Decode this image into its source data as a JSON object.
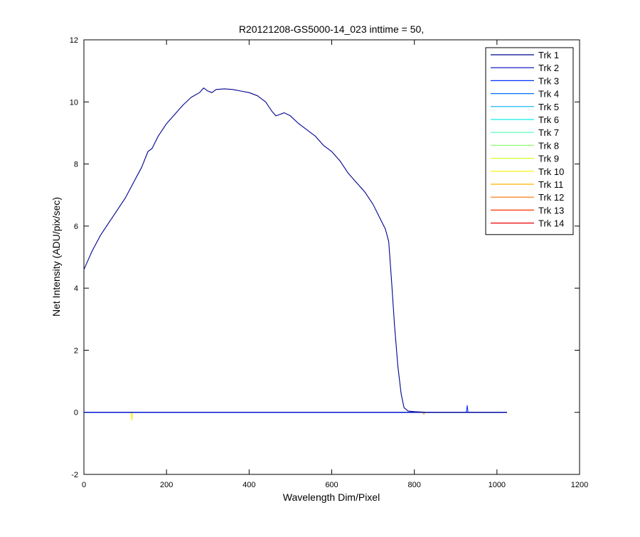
{
  "chart_data": {
    "type": "line",
    "title": "R20121208-GS5000-14_023 inttime = 50,",
    "xlabel": "Wavelength Dim/Pixel",
    "ylabel": "Net Intensity (ADU/pix/sec)",
    "xlim": [
      0,
      1200
    ],
    "ylim": [
      -2,
      12
    ],
    "xticks": [
      0,
      200,
      400,
      600,
      800,
      1000,
      1200
    ],
    "yticks": [
      -2,
      0,
      2,
      4,
      6,
      8,
      10,
      12
    ],
    "grid": false,
    "legend_position": "top-right",
    "series": [
      {
        "name": "Trk 1",
        "color": "#00008F",
        "x": [
          0,
          20,
          40,
          60,
          80,
          100,
          120,
          140,
          155,
          165,
          180,
          200,
          220,
          240,
          260,
          280,
          290,
          300,
          310,
          320,
          340,
          360,
          380,
          400,
          420,
          440,
          455,
          465,
          475,
          485,
          500,
          520,
          540,
          560,
          580,
          600,
          620,
          640,
          660,
          680,
          700,
          715,
          730,
          738,
          745,
          752,
          760,
          768,
          775,
          785,
          800,
          830,
          900,
          1000,
          1024
        ],
        "y": [
          4.6,
          5.2,
          5.7,
          6.1,
          6.5,
          6.9,
          7.4,
          7.9,
          8.4,
          8.5,
          8.9,
          9.3,
          9.6,
          9.9,
          10.15,
          10.3,
          10.45,
          10.35,
          10.3,
          10.4,
          10.42,
          10.4,
          10.35,
          10.3,
          10.2,
          10.0,
          9.7,
          9.55,
          9.6,
          9.65,
          9.55,
          9.3,
          9.1,
          8.9,
          8.6,
          8.4,
          8.1,
          7.7,
          7.4,
          7.1,
          6.7,
          6.3,
          5.9,
          5.5,
          4.2,
          2.8,
          1.5,
          0.6,
          0.15,
          0.04,
          0.02,
          0.0,
          0.0,
          0.0,
          0.0
        ]
      },
      {
        "name": "Trk 2",
        "color": "#0000BF",
        "x": [
          0,
          1024
        ],
        "y": [
          0,
          0
        ]
      },
      {
        "name": "Trk 3",
        "color": "#0030FF",
        "x": [
          0,
          926,
          928,
          930,
          1024
        ],
        "y": [
          0,
          0,
          0.22,
          0,
          0
        ]
      },
      {
        "name": "Trk 4",
        "color": "#0070FF",
        "x": [
          0,
          1024
        ],
        "y": [
          0,
          0
        ]
      },
      {
        "name": "Trk 5",
        "color": "#00B0FF",
        "x": [
          0,
          1024
        ],
        "y": [
          0,
          0
        ]
      },
      {
        "name": "Trk 6",
        "color": "#10EFEF",
        "x": [
          0,
          1024
        ],
        "y": [
          0,
          0
        ]
      },
      {
        "name": "Trk 7",
        "color": "#50FFAF",
        "x": [
          0,
          1024
        ],
        "y": [
          0,
          0
        ]
      },
      {
        "name": "Trk 8",
        "color": "#90FF70",
        "x": [
          0,
          1024
        ],
        "y": [
          0,
          0
        ]
      },
      {
        "name": "Trk 9",
        "color": "#CFFF30",
        "x": [
          0,
          1024
        ],
        "y": [
          0,
          0
        ]
      },
      {
        "name": "Trk 10",
        "color": "#FFEF00",
        "x": [
          0,
          114,
          116,
          118,
          1024
        ],
        "y": [
          0,
          0,
          -0.25,
          0,
          0
        ]
      },
      {
        "name": "Trk 11",
        "color": "#FFB000",
        "x": [
          0,
          820,
          823,
          826,
          1024
        ],
        "y": [
          0,
          0,
          -0.06,
          0,
          0
        ]
      },
      {
        "name": "Trk 12",
        "color": "#FF7000",
        "x": [
          0,
          1024
        ],
        "y": [
          0,
          0
        ]
      },
      {
        "name": "Trk 13",
        "color": "#FF3000",
        "x": [
          0,
          1024
        ],
        "y": [
          0,
          0
        ]
      },
      {
        "name": "Trk 14",
        "color": "#EF0000",
        "x": [
          0,
          1024
        ],
        "y": [
          0,
          0
        ]
      }
    ]
  }
}
